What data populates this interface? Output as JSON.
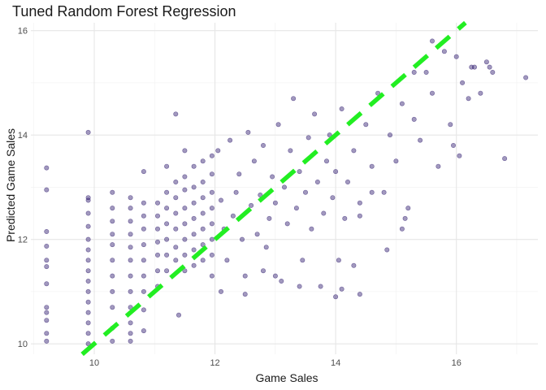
{
  "chart_data": {
    "type": "scatter",
    "title": "Tuned Random Forest Regression",
    "xlabel": "Game Sales",
    "ylabel": "Predicted Game Sales",
    "xlim": [
      8.95,
      17.35
    ],
    "ylim": [
      9.8,
      16.15
    ],
    "x_ticks": [
      10,
      12,
      14,
      16
    ],
    "y_ticks": [
      10,
      12,
      14,
      16
    ],
    "grid": true,
    "point_color": "#2e1a6e",
    "reference_line": {
      "slope": 1,
      "intercept": 0,
      "style": "dashed",
      "color": "#22ee22"
    },
    "series": [
      {
        "points": [
          [
            9.21,
            13.37
          ],
          [
            9.21,
            12.95
          ],
          [
            9.21,
            12.15
          ],
          [
            9.21,
            11.87
          ],
          [
            9.21,
            11.6
          ],
          [
            9.21,
            11.48
          ],
          [
            9.21,
            11.15
          ],
          [
            9.21,
            10.7
          ],
          [
            9.21,
            10.6
          ],
          [
            9.21,
            10.45
          ],
          [
            9.21,
            10.2
          ],
          [
            9.21,
            10.05
          ],
          [
            9.9,
            14.05
          ],
          [
            9.9,
            12.8
          ],
          [
            9.9,
            12.75
          ],
          [
            9.9,
            12.5
          ],
          [
            9.9,
            12.25
          ],
          [
            9.9,
            12.0
          ],
          [
            9.9,
            11.8
          ],
          [
            9.9,
            11.6
          ],
          [
            9.9,
            11.4
          ],
          [
            9.9,
            11.2
          ],
          [
            9.9,
            11.0
          ],
          [
            9.9,
            10.8
          ],
          [
            9.9,
            10.6
          ],
          [
            9.9,
            10.4
          ],
          [
            9.9,
            10.2
          ],
          [
            9.9,
            10.0
          ],
          [
            10.3,
            12.9
          ],
          [
            10.3,
            12.6
          ],
          [
            10.3,
            12.35
          ],
          [
            10.3,
            12.1
          ],
          [
            10.3,
            11.9
          ],
          [
            10.3,
            11.6
          ],
          [
            10.3,
            11.3
          ],
          [
            10.3,
            11.0
          ],
          [
            10.3,
            10.7
          ],
          [
            10.3,
            10.3
          ],
          [
            10.3,
            10.05
          ],
          [
            10.6,
            12.8
          ],
          [
            10.6,
            12.6
          ],
          [
            10.6,
            12.35
          ],
          [
            10.6,
            12.1
          ],
          [
            10.6,
            11.85
          ],
          [
            10.6,
            11.6
          ],
          [
            10.6,
            11.3
          ],
          [
            10.6,
            11.0
          ],
          [
            10.6,
            10.7
          ],
          [
            10.6,
            10.4
          ],
          [
            10.6,
            10.2
          ],
          [
            10.6,
            10.05
          ],
          [
            10.82,
            13.3
          ],
          [
            10.82,
            12.7
          ],
          [
            10.82,
            12.45
          ],
          [
            10.82,
            12.2
          ],
          [
            10.82,
            11.9
          ],
          [
            10.82,
            11.6
          ],
          [
            10.82,
            11.3
          ],
          [
            10.82,
            11.0
          ],
          [
            10.82,
            10.65
          ],
          [
            10.82,
            10.25
          ],
          [
            11.05,
            12.7
          ],
          [
            11.05,
            12.45
          ],
          [
            11.05,
            12.2
          ],
          [
            11.05,
            11.95
          ],
          [
            11.05,
            11.7
          ],
          [
            11.05,
            11.4
          ],
          [
            11.05,
            11.1
          ],
          [
            11.2,
            13.4
          ],
          [
            11.2,
            12.9
          ],
          [
            11.2,
            12.6
          ],
          [
            11.2,
            12.3
          ],
          [
            11.2,
            12.0
          ],
          [
            11.2,
            11.7
          ],
          [
            11.2,
            11.4
          ],
          [
            11.35,
            14.4
          ],
          [
            11.35,
            13.1
          ],
          [
            11.35,
            12.8
          ],
          [
            11.35,
            12.5
          ],
          [
            11.35,
            12.2
          ],
          [
            11.35,
            11.85
          ],
          [
            11.35,
            11.6
          ],
          [
            11.4,
            10.55
          ],
          [
            11.5,
            13.7
          ],
          [
            11.5,
            13.2
          ],
          [
            11.5,
            12.95
          ],
          [
            11.5,
            12.6
          ],
          [
            11.5,
            12.3
          ],
          [
            11.5,
            12.0
          ],
          [
            11.5,
            11.7
          ],
          [
            11.5,
            11.4
          ],
          [
            11.65,
            13.4
          ],
          [
            11.65,
            13.0
          ],
          [
            11.65,
            12.7
          ],
          [
            11.65,
            12.4
          ],
          [
            11.65,
            12.1
          ],
          [
            11.65,
            11.8
          ],
          [
            11.65,
            11.5
          ],
          [
            11.8,
            13.5
          ],
          [
            11.8,
            13.1
          ],
          [
            11.8,
            12.8
          ],
          [
            11.8,
            12.5
          ],
          [
            11.8,
            12.2
          ],
          [
            11.8,
            11.9
          ],
          [
            11.8,
            11.6
          ],
          [
            11.95,
            13.6
          ],
          [
            11.95,
            13.25
          ],
          [
            11.95,
            12.9
          ],
          [
            11.95,
            12.6
          ],
          [
            11.95,
            12.3
          ],
          [
            11.95,
            12.0
          ],
          [
            11.95,
            11.7
          ],
          [
            11.95,
            11.3
          ],
          [
            12.05,
            13.7
          ],
          [
            12.1,
            12.75
          ],
          [
            12.15,
            12.2
          ],
          [
            12.2,
            11.6
          ],
          [
            12.25,
            13.9
          ],
          [
            12.3,
            12.45
          ],
          [
            12.35,
            12.9
          ],
          [
            12.4,
            13.25
          ],
          [
            12.45,
            12.0
          ],
          [
            12.5,
            11.3
          ],
          [
            12.55,
            14.05
          ],
          [
            12.6,
            12.65
          ],
          [
            12.65,
            13.5
          ],
          [
            12.7,
            12.1
          ],
          [
            12.75,
            12.85
          ],
          [
            12.8,
            13.8
          ],
          [
            12.85,
            11.85
          ],
          [
            12.9,
            12.4
          ],
          [
            12.95,
            13.2
          ],
          [
            13.0,
            12.7
          ],
          [
            13.05,
            14.2
          ],
          [
            13.1,
            11.2
          ],
          [
            13.15,
            13.0
          ],
          [
            13.2,
            12.3
          ],
          [
            13.25,
            13.7
          ],
          [
            13.3,
            14.7
          ],
          [
            13.35,
            12.6
          ],
          [
            13.4,
            13.3
          ],
          [
            13.45,
            11.6
          ],
          [
            13.5,
            12.9
          ],
          [
            13.55,
            13.95
          ],
          [
            13.6,
            12.2
          ],
          [
            13.65,
            14.4
          ],
          [
            13.7,
            13.1
          ],
          [
            13.75,
            11.1
          ],
          [
            13.8,
            12.5
          ],
          [
            13.85,
            13.5
          ],
          [
            13.9,
            14.0
          ],
          [
            13.95,
            12.8
          ],
          [
            14.0,
            13.3
          ],
          [
            14.05,
            11.6
          ],
          [
            14.1,
            14.5
          ],
          [
            14.15,
            12.4
          ],
          [
            14.2,
            13.1
          ],
          [
            14.3,
            13.7
          ],
          [
            14.4,
            12.7
          ],
          [
            14.5,
            14.2
          ],
          [
            14.6,
            13.4
          ],
          [
            14.7,
            14.8
          ],
          [
            14.8,
            12.9
          ],
          [
            14.9,
            14.0
          ],
          [
            15.0,
            13.5
          ],
          [
            15.1,
            14.6
          ],
          [
            15.2,
            12.6
          ],
          [
            15.3,
            14.3
          ],
          [
            15.4,
            13.9
          ],
          [
            15.5,
            15.2
          ],
          [
            15.6,
            14.8
          ],
          [
            15.7,
            13.4
          ],
          [
            15.8,
            15.6
          ],
          [
            15.9,
            14.2
          ],
          [
            15.95,
            13.8
          ],
          [
            16.0,
            15.5
          ],
          [
            16.1,
            15.0
          ],
          [
            16.2,
            14.7
          ],
          [
            16.3,
            15.3
          ],
          [
            16.4,
            14.8
          ],
          [
            16.5,
            15.4
          ],
          [
            16.55,
            15.3
          ],
          [
            16.6,
            15.2
          ],
          [
            16.8,
            13.55
          ],
          [
            17.15,
            15.1
          ],
          [
            16.25,
            15.3
          ],
          [
            16.05,
            13.6
          ],
          [
            15.6,
            15.8
          ],
          [
            15.3,
            15.2
          ],
          [
            12.1,
            11.0
          ],
          [
            12.5,
            10.95
          ],
          [
            13.0,
            11.3
          ],
          [
            14.0,
            10.9
          ],
          [
            14.4,
            10.95
          ],
          [
            14.1,
            11.05
          ],
          [
            15.1,
            12.2
          ],
          [
            13.4,
            11.1
          ],
          [
            12.8,
            11.4
          ],
          [
            14.3,
            11.5
          ],
          [
            14.6,
            12.9
          ],
          [
            14.4,
            12.45
          ],
          [
            14.85,
            11.8
          ],
          [
            15.15,
            12.4
          ]
        ]
      }
    ]
  }
}
